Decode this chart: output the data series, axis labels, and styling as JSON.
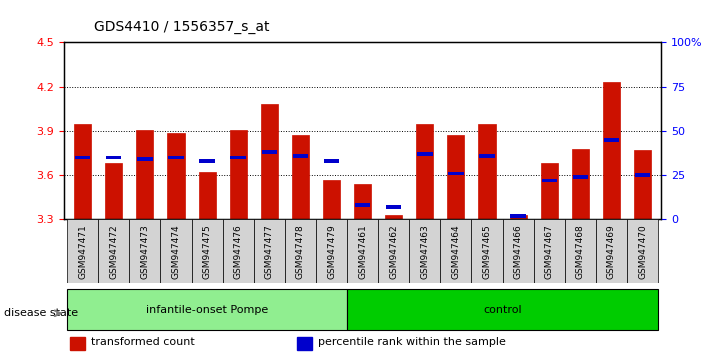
{
  "title": "GDS4410 / 1556357_s_at",
  "samples": [
    "GSM947471",
    "GSM947472",
    "GSM947473",
    "GSM947474",
    "GSM947475",
    "GSM947476",
    "GSM947477",
    "GSM947478",
    "GSM947479",
    "GSM947461",
    "GSM947462",
    "GSM947463",
    "GSM947464",
    "GSM947465",
    "GSM947466",
    "GSM947467",
    "GSM947468",
    "GSM947469",
    "GSM947470"
  ],
  "groups": [
    {
      "label": "infantile-onset Pompe",
      "start": 0,
      "end": 9,
      "color": "#90EE90"
    },
    {
      "label": "control",
      "start": 9,
      "end": 19,
      "color": "#00CC00"
    }
  ],
  "ymin": 3.3,
  "ymax": 4.5,
  "yticks": [
    3.3,
    3.6,
    3.9,
    4.2,
    4.5
  ],
  "right_yticks": [
    0,
    25,
    50,
    75,
    100
  ],
  "right_ytick_labels": [
    "0",
    "25",
    "50",
    "75",
    "100%"
  ],
  "bar_color": "#CC1100",
  "marker_color": "#0000CC",
  "bar_values": [
    3.95,
    3.68,
    3.91,
    3.885,
    3.62,
    3.91,
    4.08,
    3.875,
    3.57,
    3.54,
    3.33,
    3.95,
    3.87,
    3.95,
    3.33,
    3.68,
    3.78,
    4.23,
    3.77
  ],
  "percentile_values": [
    35,
    35,
    34,
    35,
    33,
    35,
    38,
    36,
    33,
    8,
    7,
    37,
    26,
    36,
    2,
    22,
    24,
    45,
    25
  ],
  "base": 3.3,
  "disease_state_label": "disease state",
  "legend_items": [
    {
      "color": "#CC1100",
      "label": "transformed count"
    },
    {
      "color": "#0000CC",
      "label": "percentile rank within the sample"
    }
  ]
}
